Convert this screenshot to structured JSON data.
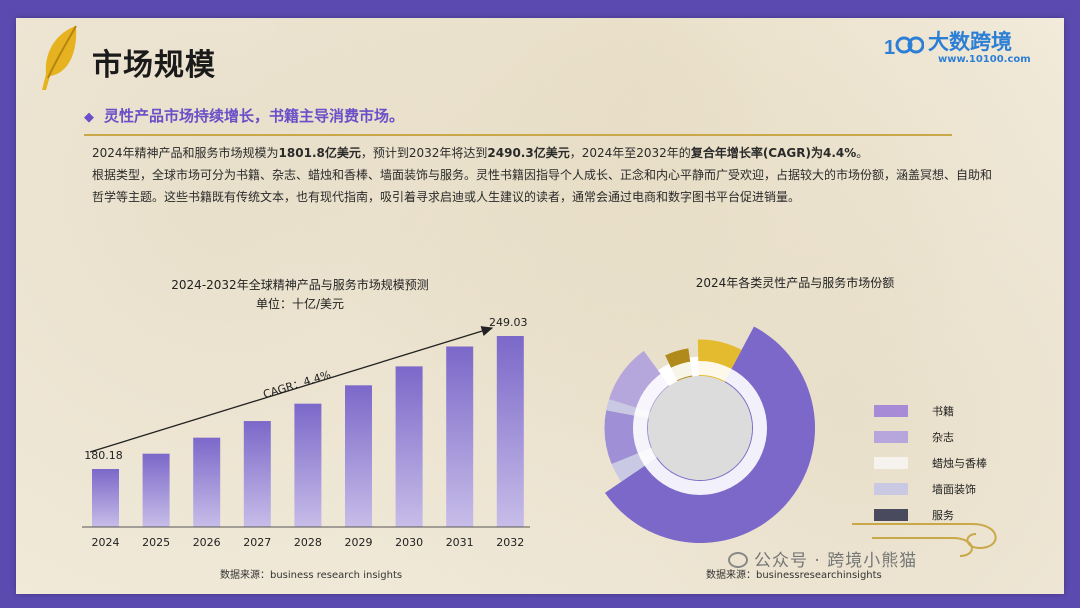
{
  "header": {
    "title": "市场规模",
    "logo_text": "大数跨境",
    "logo_url": "www.10100.com"
  },
  "subtitle": "灵性产品市场持续增长，书籍主导消费市场。",
  "paragraph1": {
    "t1": "2024年精神产品和服务市场规模为",
    "b1": "1801.8亿美元",
    "t2": "，预计到2032年将达到",
    "b2": "2490.3亿美元",
    "t3": "，2024年至2032年的",
    "b3": "复合年增长率(CAGR)为4.4%",
    "t4": "。"
  },
  "paragraph2": "根据类型，全球市场可分为书籍、杂志、蜡烛和香棒、墙面装饰与服务。灵性书籍因指导个人成长、正念和内心平静而广受欢迎，占据较大的市场份额，涵盖冥想、自助和哲学等主题。这些书籍既有传统文本，也有现代指南，吸引着寻求启迪或人生建议的读者，通常会通过电商和数字图书平台促进销量。",
  "footer": {
    "wechat": "公众号 · 跨境小熊猫"
  },
  "colors": {
    "bar": "#7b68c9",
    "accent": "#6a4fc8",
    "gold": "#c9a84a"
  },
  "chart_data": [
    {
      "type": "bar",
      "title": "2024-2032年全球精神产品与服务市场规模预测",
      "subtitle": "单位：十亿/美元",
      "categories": [
        "2024",
        "2025",
        "2026",
        "2027",
        "2028",
        "2029",
        "2030",
        "2031",
        "2032"
      ],
      "values": [
        180.18,
        188.1,
        196.4,
        205.0,
        214.0,
        223.5,
        233.3,
        243.6,
        249.03
      ],
      "data_labels": {
        "first": "180.18",
        "last": "249.03"
      },
      "annotation": "CAGR：4.4%",
      "source": "数据来源：business research insights",
      "ylim": [
        120,
        260
      ],
      "grid": false
    },
    {
      "type": "pie",
      "title": "2024年各类灵性产品与服务市场份额",
      "legend_position": "right",
      "labels": [
        "书籍",
        "杂志",
        "蜡烛与香棒",
        "墙面装饰",
        "服务"
      ],
      "legend_colors": [
        "#a88bd6",
        "#b7a6dc",
        "#f6f3ee",
        "#c9c9e3",
        "#4a4a5e"
      ],
      "segments": [
        {
          "name": "书籍",
          "value": 60.0,
          "color": "#7b68c9",
          "outer": 1.0
        },
        {
          "name": "",
          "value": 3.5,
          "color": "#c9c9e3",
          "outer": 0.83
        },
        {
          "name": "",
          "value": 9.5,
          "color": "#9f8fd6",
          "outer": 0.83
        },
        {
          "name": "",
          "value": 2.0,
          "color": "#c9c9e3",
          "outer": 0.83
        },
        {
          "name": "",
          "value": 10.5,
          "color": "#b5a6dc",
          "outer": 0.83
        },
        {
          "name": "",
          "value": 3.0,
          "color": "#ffffff",
          "outer": 0.62
        },
        {
          "name": "",
          "value": 5.0,
          "color": "#b08a1a",
          "outer": 0.7
        },
        {
          "name": "",
          "value": 2.0,
          "color": "#ffffff",
          "outer": 0.62
        },
        {
          "name": "",
          "value": 8.5,
          "color": "#e4bb2e",
          "outer": 0.77
        }
      ],
      "source": "数据来源：businessresearchinsights"
    }
  ]
}
